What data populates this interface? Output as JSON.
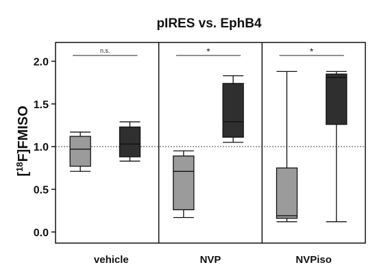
{
  "chart_data": {
    "type": "boxplot",
    "title": "pIRES vs. EphB4",
    "ylabel_prefix": "[",
    "ylabel_sup": "18",
    "ylabel_suffix": "F]FMISO",
    "ylim": [
      -0.13,
      2.22
    ],
    "yticks": [
      "0.0",
      "0.5",
      "1.0",
      "1.5",
      "2.0"
    ],
    "reference_line": 1.0,
    "groups": [
      {
        "label": "vehicle",
        "significance": "n.s.",
        "boxes": [
          {
            "series": "pIRES",
            "min": 0.71,
            "q1": 0.77,
            "median": 0.97,
            "q3": 1.12,
            "max": 1.17
          },
          {
            "series": "EphB4",
            "min": 0.83,
            "q1": 0.88,
            "median": 1.03,
            "q3": 1.23,
            "max": 1.29
          }
        ]
      },
      {
        "label": "NVP",
        "significance": "*",
        "boxes": [
          {
            "series": "pIRES",
            "min": 0.17,
            "q1": 0.26,
            "median": 0.71,
            "q3": 0.89,
            "max": 0.95
          },
          {
            "series": "EphB4",
            "min": 1.05,
            "q1": 1.11,
            "median": 1.29,
            "q3": 1.74,
            "max": 1.83
          }
        ]
      },
      {
        "label": "NVPiso",
        "significance": "*",
        "boxes": [
          {
            "series": "pIRES",
            "min": 0.12,
            "q1": 0.16,
            "median": 0.19,
            "q3": 0.75,
            "max": 1.88
          },
          {
            "series": "EphB4",
            "min": 0.12,
            "q1": 1.26,
            "median": 1.81,
            "q3": 1.85,
            "max": 1.88
          }
        ]
      }
    ],
    "colors": {
      "pIRES": "#9b9b9b",
      "EphB4": "#2f2f2f",
      "axis": "#111111",
      "reference": "#444444"
    }
  }
}
